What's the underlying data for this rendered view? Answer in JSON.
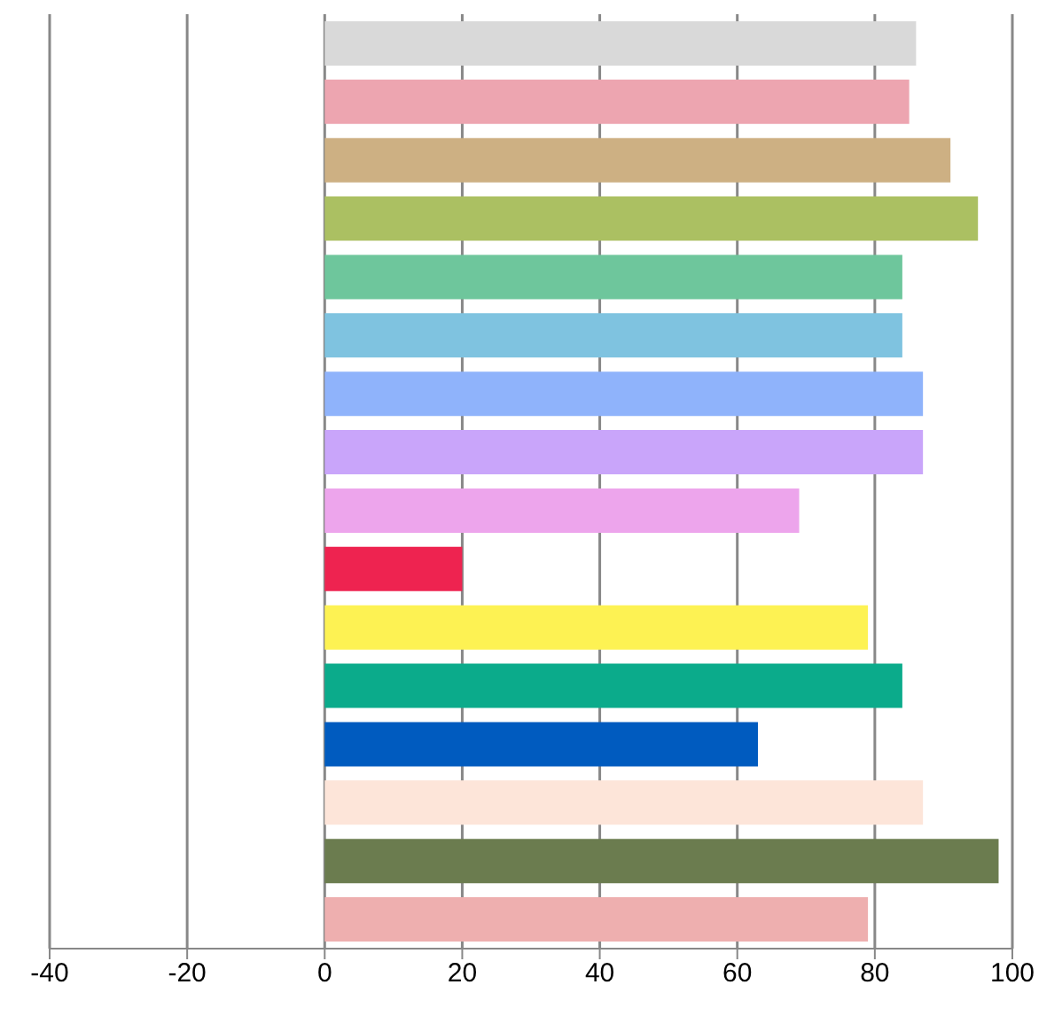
{
  "chart_data": {
    "type": "bar",
    "orientation": "horizontal",
    "categories": [
      null,
      null,
      null,
      null,
      null,
      null,
      null,
      null,
      null,
      null,
      null,
      null,
      null,
      null,
      null,
      null
    ],
    "values": [
      86,
      85,
      91,
      95,
      84,
      84,
      87,
      87,
      69,
      20,
      79,
      84,
      63,
      87,
      98,
      79
    ],
    "colors": [
      "#d9d9d9",
      "#eda5b0",
      "#cdb083",
      "#abc062",
      "#6ec69c",
      "#7fc3e0",
      "#8fb3fb",
      "#c9a5fa",
      "#eda5ec",
      "#ee2350",
      "#fdf253",
      "#0bab8b",
      "#005bbf",
      "#fde5d9",
      "#6b7c4f",
      "#eeafaf"
    ],
    "xlim": [
      -40,
      100
    ],
    "xticks": [
      -40,
      -20,
      0,
      20,
      40,
      60,
      80,
      100
    ],
    "grid": "x",
    "tick_labels": "x"
  }
}
